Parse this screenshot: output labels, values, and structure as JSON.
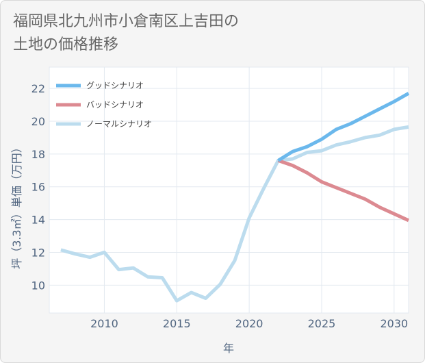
{
  "chart_data": {
    "type": "line",
    "title_lines": [
      "福岡県北九州市小倉南区上吉田の",
      "土地の価格推移"
    ],
    "xlabel": "年",
    "ylabel": "坪（3.3㎡）単価（万円）",
    "xlim": [
      2006.2,
      2031
    ],
    "ylim": [
      8.3,
      23.3
    ],
    "x_ticks": [
      2010,
      2015,
      2020,
      2025,
      2030
    ],
    "y_ticks": [
      10,
      12,
      14,
      16,
      18,
      20,
      22
    ],
    "legend_position": "top-left",
    "series": [
      {
        "name": "グッドシナリオ",
        "color": "#6bb8ec",
        "x": [
          2022,
          2023,
          2024,
          2025,
          2026,
          2027,
          2028,
          2029,
          2030,
          2031
        ],
        "values": [
          17.6,
          18.15,
          18.45,
          18.9,
          19.5,
          19.85,
          20.3,
          20.75,
          21.2,
          21.7
        ]
      },
      {
        "name": "バッドシナリオ",
        "color": "#dc8a91",
        "x": [
          2022,
          2023,
          2024,
          2025,
          2026,
          2027,
          2028,
          2029,
          2030,
          2031
        ],
        "values": [
          17.6,
          17.3,
          16.85,
          16.3,
          15.95,
          15.6,
          15.25,
          14.75,
          14.35,
          13.95
        ]
      },
      {
        "name": "ノーマルシナリオ",
        "color": "#bcdcee",
        "x": [
          2007,
          2008,
          2009,
          2010,
          2011,
          2012,
          2013,
          2014,
          2015,
          2016,
          2017,
          2018,
          2019,
          2020,
          2021,
          2022,
          2023,
          2024,
          2025,
          2026,
          2027,
          2028,
          2029,
          2030,
          2031
        ],
        "values": [
          12.15,
          11.9,
          11.7,
          12.0,
          10.95,
          11.05,
          10.5,
          10.45,
          9.05,
          9.55,
          9.2,
          10.05,
          11.5,
          14.1,
          15.9,
          17.6,
          17.7,
          18.1,
          18.2,
          18.55,
          18.75,
          19.0,
          19.15,
          19.5,
          19.65
        ]
      }
    ]
  }
}
